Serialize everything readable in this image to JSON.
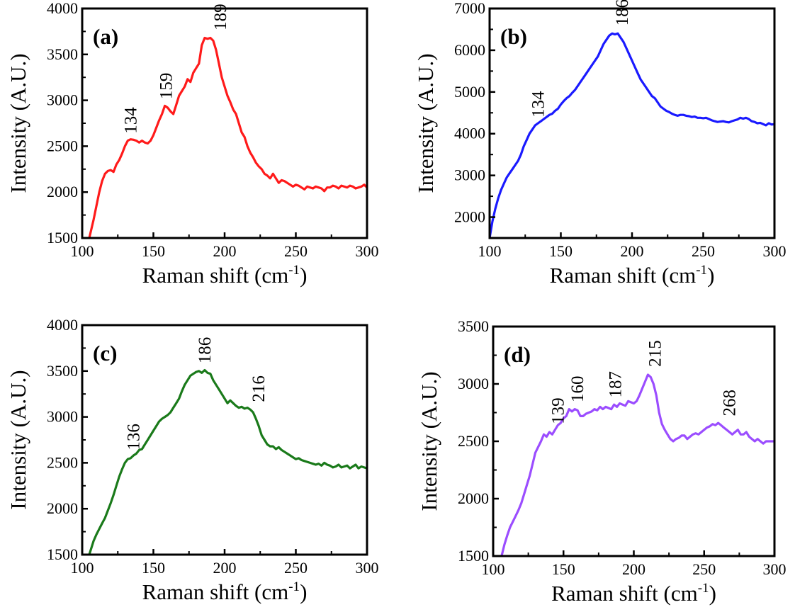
{
  "chart_data": [
    {
      "type": "line",
      "panel_label": "(a)",
      "xlabel": "Raman shift (cm",
      "xlabel_sup": "-1",
      "xlabel_end": ")",
      "ylabel": "Intensity (A.U.)",
      "xlim": [
        100,
        300
      ],
      "ylim": [
        1500,
        4000
      ],
      "xticks": [
        100,
        150,
        200,
        250,
        300
      ],
      "yticks": [
        1500,
        2000,
        2500,
        3000,
        3500,
        4000
      ],
      "color": "#ff1a1a",
      "peaks": [
        {
          "label": "134",
          "x": 134,
          "y": 2575
        },
        {
          "label": "159",
          "x": 159,
          "y": 2950
        },
        {
          "label": "189",
          "x": 197,
          "y": 3700
        }
      ],
      "series": [
        {
          "x": [
            105,
            108,
            110,
            112,
            114,
            116,
            118,
            120,
            122,
            124,
            126,
            128,
            130,
            132,
            134,
            136,
            138,
            140,
            142,
            144,
            146,
            148,
            150,
            152,
            154,
            156,
            158,
            160,
            162,
            164,
            166,
            168,
            170,
            172,
            174,
            176,
            178,
            180,
            182,
            184,
            186,
            188,
            190,
            192,
            194,
            196,
            198,
            200,
            202,
            204,
            206,
            208,
            210,
            212,
            214,
            216,
            218,
            220,
            222,
            224,
            226,
            228,
            230,
            232,
            234,
            236,
            238,
            240,
            242,
            244,
            246,
            248,
            250,
            252,
            254,
            256,
            258,
            260,
            262,
            264,
            266,
            268,
            270,
            272,
            274,
            276,
            278,
            280,
            282,
            284,
            286,
            288,
            290,
            292,
            294,
            296,
            298,
            300
          ],
          "y": [
            1500,
            1700,
            1850,
            2000,
            2120,
            2200,
            2230,
            2240,
            2220,
            2300,
            2350,
            2420,
            2500,
            2560,
            2575,
            2570,
            2560,
            2540,
            2560,
            2540,
            2530,
            2560,
            2620,
            2700,
            2780,
            2850,
            2940,
            2920,
            2880,
            2850,
            2950,
            3050,
            3100,
            3150,
            3230,
            3200,
            3300,
            3350,
            3400,
            3600,
            3680,
            3670,
            3680,
            3650,
            3550,
            3400,
            3250,
            3150,
            3050,
            2980,
            2900,
            2850,
            2750,
            2650,
            2600,
            2500,
            2430,
            2380,
            2320,
            2280,
            2250,
            2200,
            2180,
            2150,
            2200,
            2150,
            2100,
            2130,
            2120,
            2100,
            2080,
            2060,
            2080,
            2070,
            2050,
            2030,
            2060,
            2050,
            2040,
            2060,
            2050,
            2040,
            2010,
            2050,
            2050,
            2070,
            2060,
            2040,
            2070,
            2060,
            2050,
            2070,
            2060,
            2040,
            2050,
            2060,
            2080,
            2050
          ]
        }
      ]
    },
    {
      "type": "line",
      "panel_label": "(b)",
      "xlabel": "Raman shift (cm",
      "xlabel_sup": "-1",
      "xlabel_end": ")",
      "ylabel": "Intensity (A.U.)",
      "xlim": [
        100,
        300
      ],
      "ylim": [
        1500,
        7000
      ],
      "xticks": [
        100,
        150,
        200,
        250,
        300
      ],
      "yticks": [
        2000,
        3000,
        4000,
        5000,
        6000,
        7000
      ],
      "color": "#1a1aff",
      "peaks": [
        {
          "label": "134",
          "x": 134,
          "y": 4250
        },
        {
          "label": "186",
          "x": 193,
          "y": 6450
        }
      ],
      "series": [
        {
          "x": [
            100,
            102,
            104,
            106,
            108,
            110,
            112,
            114,
            116,
            118,
            120,
            122,
            124,
            126,
            128,
            130,
            132,
            134,
            136,
            138,
            140,
            142,
            144,
            146,
            148,
            150,
            152,
            154,
            156,
            158,
            160,
            162,
            164,
            166,
            168,
            170,
            172,
            174,
            176,
            178,
            180,
            182,
            184,
            186,
            188,
            190,
            192,
            194,
            196,
            198,
            200,
            202,
            204,
            206,
            208,
            210,
            212,
            214,
            216,
            218,
            220,
            222,
            224,
            226,
            228,
            230,
            232,
            234,
            236,
            238,
            240,
            242,
            244,
            246,
            248,
            250,
            252,
            254,
            256,
            258,
            260,
            262,
            264,
            266,
            268,
            270,
            272,
            274,
            276,
            278,
            280,
            282,
            284,
            286,
            288,
            290,
            292,
            294,
            296,
            298,
            300
          ],
          "y": [
            1500,
            1900,
            2200,
            2450,
            2650,
            2800,
            2950,
            3050,
            3150,
            3250,
            3350,
            3500,
            3700,
            3850,
            4000,
            4100,
            4200,
            4250,
            4300,
            4350,
            4400,
            4450,
            4480,
            4550,
            4600,
            4700,
            4780,
            4850,
            4900,
            4980,
            5050,
            5150,
            5250,
            5350,
            5450,
            5550,
            5650,
            5750,
            5850,
            6000,
            6150,
            6250,
            6350,
            6400,
            6380,
            6400,
            6300,
            6200,
            6050,
            5900,
            5750,
            5600,
            5450,
            5300,
            5200,
            5100,
            5000,
            4900,
            4850,
            4750,
            4650,
            4600,
            4550,
            4520,
            4480,
            4450,
            4430,
            4450,
            4450,
            4430,
            4420,
            4400,
            4410,
            4380,
            4380,
            4370,
            4380,
            4350,
            4320,
            4300,
            4280,
            4290,
            4300,
            4280,
            4270,
            4300,
            4320,
            4340,
            4380,
            4360,
            4380,
            4350,
            4300,
            4280,
            4250,
            4260,
            4230,
            4200,
            4250,
            4220,
            4230
          ]
        }
      ]
    },
    {
      "type": "line",
      "panel_label": "(c)",
      "xlabel": "Raman shift (cm",
      "xlabel_sup": "-1",
      "xlabel_end": ")",
      "ylabel": "Intensity (A.U.)",
      "xlim": [
        100,
        300
      ],
      "ylim": [
        1500,
        4000
      ],
      "xticks": [
        100,
        150,
        200,
        250,
        300
      ],
      "yticks": [
        1500,
        2000,
        2500,
        3000,
        3500,
        4000
      ],
      "color": "#1a7a1a",
      "peaks": [
        {
          "label": "136",
          "x": 136,
          "y": 2575
        },
        {
          "label": "186",
          "x": 186,
          "y": 3520
        },
        {
          "label": "216",
          "x": 224,
          "y": 3100
        }
      ],
      "series": [
        {
          "x": [
            105,
            108,
            110,
            112,
            114,
            116,
            118,
            120,
            122,
            124,
            126,
            128,
            130,
            132,
            134,
            136,
            138,
            140,
            142,
            144,
            146,
            148,
            150,
            152,
            154,
            156,
            158,
            160,
            162,
            164,
            166,
            168,
            170,
            172,
            174,
            176,
            178,
            180,
            182,
            184,
            186,
            188,
            190,
            192,
            194,
            196,
            198,
            200,
            202,
            204,
            206,
            208,
            210,
            212,
            214,
            216,
            218,
            220,
            222,
            224,
            226,
            228,
            230,
            232,
            234,
            236,
            238,
            240,
            242,
            244,
            246,
            248,
            250,
            252,
            254,
            256,
            258,
            260,
            262,
            264,
            266,
            268,
            270,
            272,
            274,
            276,
            278,
            280,
            282,
            284,
            286,
            288,
            290,
            292,
            294,
            296,
            298,
            300
          ],
          "y": [
            1500,
            1650,
            1720,
            1780,
            1840,
            1900,
            1980,
            2060,
            2150,
            2250,
            2350,
            2430,
            2500,
            2540,
            2550,
            2580,
            2600,
            2640,
            2650,
            2700,
            2750,
            2800,
            2850,
            2900,
            2950,
            2980,
            3000,
            3020,
            3050,
            3100,
            3150,
            3200,
            3280,
            3350,
            3400,
            3450,
            3470,
            3490,
            3500,
            3480,
            3510,
            3480,
            3470,
            3400,
            3350,
            3300,
            3250,
            3200,
            3150,
            3180,
            3150,
            3120,
            3100,
            3110,
            3090,
            3100,
            3080,
            3050,
            2980,
            2900,
            2800,
            2750,
            2700,
            2680,
            2680,
            2650,
            2670,
            2640,
            2620,
            2600,
            2580,
            2560,
            2540,
            2550,
            2530,
            2520,
            2510,
            2500,
            2490,
            2480,
            2490,
            2470,
            2500,
            2480,
            2470,
            2450,
            2460,
            2480,
            2450,
            2460,
            2470,
            2440,
            2460,
            2480,
            2440,
            2460,
            2450,
            2440
          ]
        }
      ]
    },
    {
      "type": "line",
      "panel_label": "(d)",
      "xlabel": "Raman shift (cm",
      "xlabel_sup": "-1",
      "xlabel_end": ")",
      "ylabel": "Intensity (A.U.)",
      "xlim": [
        100,
        300
      ],
      "ylim": [
        1500,
        3500
      ],
      "xticks": [
        100,
        150,
        200,
        250,
        300
      ],
      "yticks": [
        1500,
        2000,
        2500,
        3000,
        3500
      ],
      "color": "#9b4dff",
      "peaks": [
        {
          "label": "139",
          "x": 146,
          "y": 2600
        },
        {
          "label": "160",
          "x": 160,
          "y": 2790
        },
        {
          "label": "187",
          "x": 187,
          "y": 2830
        },
        {
          "label": "215",
          "x": 215,
          "y": 3100
        },
        {
          "label": "268",
          "x": 268,
          "y": 2670
        }
      ],
      "series": [
        {
          "x": [
            106,
            108,
            110,
            112,
            114,
            116,
            118,
            120,
            122,
            124,
            126,
            128,
            130,
            132,
            134,
            136,
            138,
            140,
            142,
            144,
            146,
            148,
            150,
            152,
            154,
            156,
            158,
            160,
            162,
            164,
            166,
            168,
            170,
            172,
            174,
            176,
            178,
            180,
            182,
            184,
            186,
            188,
            190,
            192,
            194,
            196,
            198,
            200,
            202,
            204,
            206,
            208,
            210,
            212,
            214,
            216,
            218,
            220,
            222,
            224,
            226,
            228,
            230,
            232,
            234,
            236,
            238,
            240,
            242,
            244,
            246,
            248,
            250,
            252,
            254,
            256,
            258,
            260,
            262,
            264,
            266,
            268,
            270,
            272,
            274,
            276,
            278,
            280,
            282,
            284,
            286,
            288,
            290,
            292,
            294,
            296,
            298,
            300
          ],
          "y": [
            1500,
            1600,
            1680,
            1750,
            1800,
            1850,
            1900,
            1960,
            2040,
            2120,
            2200,
            2300,
            2400,
            2450,
            2500,
            2560,
            2540,
            2580,
            2560,
            2600,
            2640,
            2660,
            2700,
            2720,
            2780,
            2760,
            2780,
            2770,
            2720,
            2720,
            2740,
            2750,
            2760,
            2780,
            2770,
            2800,
            2780,
            2800,
            2790,
            2780,
            2820,
            2800,
            2830,
            2820,
            2810,
            2850,
            2840,
            2830,
            2850,
            2900,
            2960,
            3020,
            3080,
            3060,
            3000,
            2900,
            2750,
            2650,
            2600,
            2560,
            2520,
            2500,
            2520,
            2530,
            2550,
            2550,
            2520,
            2540,
            2560,
            2570,
            2560,
            2580,
            2600,
            2620,
            2630,
            2650,
            2640,
            2660,
            2640,
            2620,
            2600,
            2580,
            2560,
            2580,
            2600,
            2560,
            2560,
            2580,
            2540,
            2520,
            2500,
            2520,
            2500,
            2480,
            2500,
            2500,
            2500,
            2500
          ]
        }
      ]
    }
  ]
}
